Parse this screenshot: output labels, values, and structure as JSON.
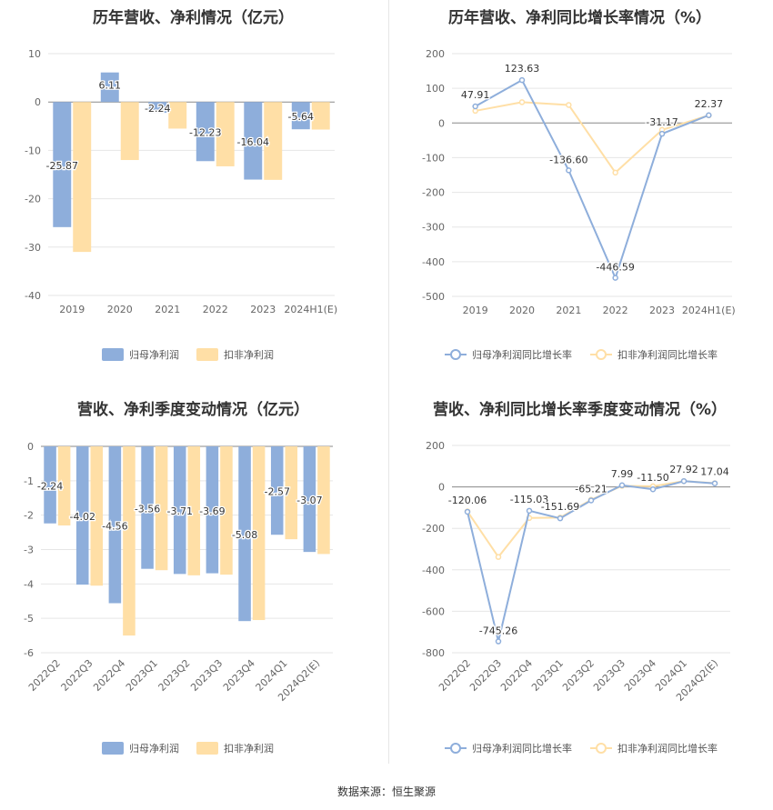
{
  "source_label": "数据来源：恒生聚源",
  "colors": {
    "blue": "#8eaedb",
    "orange": "#ffdfa6",
    "grid": "#e6e6e6",
    "axis": "#555555"
  },
  "chart_data": [
    {
      "type": "bar",
      "title": "历年营收、净利情况（亿元）",
      "categories": [
        "2019",
        "2020",
        "2021",
        "2022",
        "2023",
        "2024H1(E)"
      ],
      "ylim": [
        -40,
        10
      ],
      "yticks": [
        10,
        0,
        -10,
        -20,
        -30,
        -40
      ],
      "series": [
        {
          "name": "归母净利润",
          "values": [
            -25.87,
            6.11,
            -2.24,
            -12.23,
            -16.04,
            -5.64
          ],
          "labels": [
            "-25.87",
            "6.11",
            "-2.24",
            "-12.23",
            "-16.04",
            "-5.64"
          ]
        },
        {
          "name": "扣非净利润",
          "values": [
            -31.0,
            -12.0,
            -5.5,
            -13.3,
            -16.1,
            -5.7
          ]
        }
      ],
      "legend": "bottom"
    },
    {
      "type": "line",
      "title": "历年营收、净利同比增长率情况（%）",
      "categories": [
        "2019",
        "2020",
        "2021",
        "2022",
        "2023",
        "2024H1(E)"
      ],
      "ylim": [
        -500,
        200
      ],
      "yticks": [
        200,
        100,
        0,
        -100,
        -200,
        -300,
        -400,
        -500
      ],
      "series": [
        {
          "name": "归母净利润同比增长率",
          "values": [
            47.91,
            123.63,
            -136.6,
            -446.59,
            -31.17,
            22.37
          ],
          "labels": [
            "47.91",
            "123.63",
            "-136.60",
            "-446.59",
            "-31.17",
            "22.37"
          ]
        },
        {
          "name": "扣非净利润同比增长率",
          "values": [
            35,
            60,
            52,
            -143,
            -20,
            22
          ]
        }
      ],
      "legend": "bottom"
    },
    {
      "type": "bar",
      "title": "营收、净利季度变动情况（亿元）",
      "categories": [
        "2022Q2",
        "2022Q3",
        "2022Q4",
        "2023Q1",
        "2023Q2",
        "2023Q3",
        "2023Q4",
        "2024Q1",
        "2024Q2(E)"
      ],
      "ylim": [
        -6,
        0
      ],
      "yticks": [
        0,
        -1,
        -2,
        -3,
        -4,
        -5,
        -6
      ],
      "series": [
        {
          "name": "归母净利润",
          "values": [
            -2.24,
            -4.02,
            -4.56,
            -3.56,
            -3.71,
            -3.69,
            -5.08,
            -2.57,
            -3.07
          ],
          "labels": [
            "-2.24",
            "-4.02",
            "-4.56",
            "-3.56",
            "-3.71",
            "-3.69",
            "-5.08",
            "-2.57",
            "-3.07"
          ]
        },
        {
          "name": "扣非净利润",
          "values": [
            -2.3,
            -4.05,
            -5.5,
            -3.6,
            -3.75,
            -3.73,
            -5.05,
            -2.7,
            -3.13
          ]
        }
      ],
      "legend": "bottom"
    },
    {
      "type": "line",
      "title": "营收、净利同比增长率季度变动情况（%）",
      "categories": [
        "2022Q2",
        "2022Q3",
        "2022Q4",
        "2023Q1",
        "2023Q2",
        "2023Q3",
        "2023Q4",
        "2024Q1",
        "2024Q2(E)"
      ],
      "ylim": [
        -800,
        200
      ],
      "yticks": [
        200,
        0,
        -200,
        -400,
        -600,
        -800
      ],
      "series": [
        {
          "name": "归母净利润同比增长率",
          "values": [
            -120.06,
            -745.26,
            -115.03,
            -151.69,
            -65.21,
            7.99,
            -11.5,
            27.92,
            17.04
          ],
          "labels": [
            "-120.06",
            "-745.26",
            "-115.03",
            "-151.69",
            "-65.21",
            "7.99",
            "-11.50",
            "27.92",
            "17.04"
          ]
        },
        {
          "name": "扣非净利润同比增长率",
          "values": [
            -118,
            -338,
            -150,
            -148,
            -62,
            5,
            3,
            28,
            18
          ]
        }
      ],
      "legend": "bottom"
    }
  ]
}
